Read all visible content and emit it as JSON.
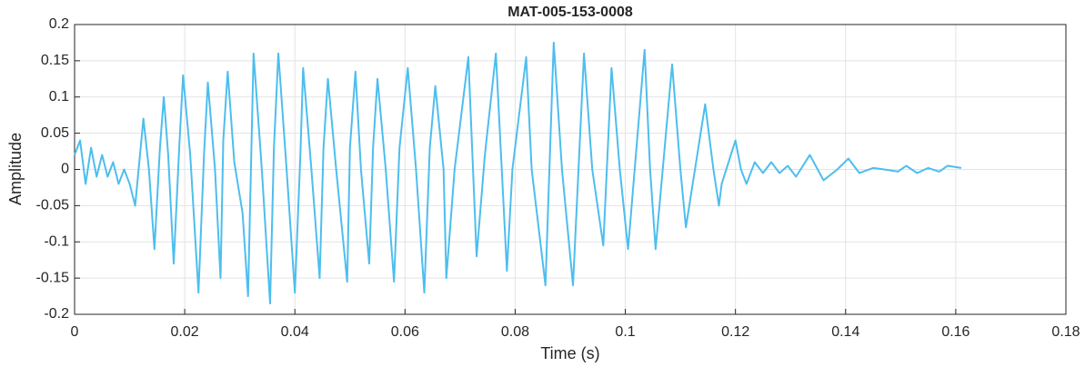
{
  "chart_data": {
    "type": "line",
    "title": "MAT-005-153-0008",
    "xlabel": "Time (s)",
    "ylabel": "Amplitude",
    "xlim": [
      0,
      0.18
    ],
    "xticks": [
      0,
      0.02,
      0.04,
      0.06,
      0.08,
      0.1,
      0.12,
      0.14,
      0.16,
      0.18
    ],
    "ylim": [
      -0.2,
      0.2
    ],
    "yticks": [
      -0.2,
      -0.15,
      -0.1,
      -0.05,
      0,
      0.05,
      0.1,
      0.15,
      0.2
    ],
    "grid": true,
    "x": [
      0,
      0.001,
      0.002,
      0.003,
      0.004,
      0.005,
      0.006,
      0.007,
      0.008,
      0.009,
      0.01,
      0.011,
      0.0125,
      0.0135,
      0.0145,
      0.0155,
      0.0162,
      0.017,
      0.018,
      0.019,
      0.0197,
      0.021,
      0.0225,
      0.0235,
      0.0242,
      0.0255,
      0.0265,
      0.027,
      0.0278,
      0.029,
      0.0305,
      0.0315,
      0.0325,
      0.034,
      0.0355,
      0.0362,
      0.037,
      0.0385,
      0.04,
      0.041,
      0.0415,
      0.043,
      0.0445,
      0.0452,
      0.046,
      0.0475,
      0.0495,
      0.05,
      0.051,
      0.052,
      0.0535,
      0.0542,
      0.055,
      0.0565,
      0.058,
      0.059,
      0.0605,
      0.062,
      0.0635,
      0.0645,
      0.0655,
      0.067,
      0.0675,
      0.069,
      0.0715,
      0.073,
      0.0745,
      0.0765,
      0.0785,
      0.0795,
      0.082,
      0.083,
      0.0855,
      0.087,
      0.0885,
      0.0905,
      0.0925,
      0.094,
      0.096,
      0.0975,
      0.099,
      0.1005,
      0.1035,
      0.1045,
      0.1055,
      0.1085,
      0.11,
      0.111,
      0.1145,
      0.116,
      0.117,
      0.1175,
      0.12,
      0.121,
      0.122,
      0.1235,
      0.125,
      0.1265,
      0.128,
      0.1295,
      0.131,
      0.1335,
      0.136,
      0.1385,
      0.1405,
      0.1425,
      0.145,
      0.147,
      0.1495,
      0.151,
      0.153,
      0.155,
      0.157,
      0.1585,
      0.161
    ],
    "series": [
      {
        "color": "#4DBEEE",
        "values": [
          0.02,
          0.04,
          -0.02,
          0.03,
          -0.01,
          0.02,
          -0.01,
          0.01,
          -0.02,
          0,
          -0.02,
          -0.05,
          0.07,
          0,
          -0.11,
          0.03,
          0.1,
          0.02,
          -0.13,
          0.03,
          0.13,
          0.02,
          -0.17,
          0.02,
          0.12,
          0,
          -0.15,
          0.04,
          0.135,
          0.01,
          -0.06,
          -0.175,
          0.16,
          0,
          -0.185,
          0.03,
          0.16,
          0,
          -0.17,
          0.02,
          0.14,
          0,
          -0.15,
          0.03,
          0.125,
          0,
          -0.155,
          0.03,
          0.135,
          0,
          -0.13,
          0.03,
          0.125,
          0,
          -0.155,
          0.03,
          0.14,
          0,
          -0.17,
          0.03,
          0.115,
          0,
          -0.15,
          0,
          0.155,
          -0.12,
          0.02,
          0.16,
          -0.14,
          0,
          0.155,
          0,
          -0.16,
          0.175,
          0,
          -0.16,
          0.16,
          0,
          -0.105,
          0.14,
          0,
          -0.11,
          0.165,
          0,
          -0.11,
          0.145,
          0,
          -0.08,
          0.09,
          0,
          -0.05,
          -0.02,
          0.04,
          0,
          -0.02,
          0.01,
          -0.005,
          0.01,
          -0.005,
          0.005,
          -0.01,
          0.02,
          -0.015,
          0,
          0.015,
          -0.005,
          0.002,
          0,
          -0.003,
          0.005,
          -0.005,
          0.002,
          -0.003,
          0.005,
          0.002
        ]
      }
    ]
  }
}
